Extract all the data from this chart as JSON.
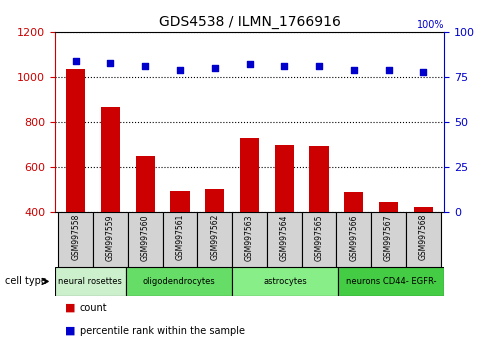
{
  "title": "GDS4538 / ILMN_1766916",
  "samples": [
    "GSM997558",
    "GSM997559",
    "GSM997560",
    "GSM997561",
    "GSM997562",
    "GSM997563",
    "GSM997564",
    "GSM997565",
    "GSM997566",
    "GSM997567",
    "GSM997568"
  ],
  "counts": [
    1035,
    865,
    650,
    495,
    505,
    730,
    700,
    695,
    490,
    445,
    425
  ],
  "percentile": [
    84,
    83,
    81,
    79,
    80,
    82,
    81,
    81,
    79,
    79,
    78
  ],
  "ylim_left": [
    400,
    1200
  ],
  "ylim_right": [
    0,
    100
  ],
  "yticks_left": [
    400,
    600,
    800,
    1000,
    1200
  ],
  "yticks_right": [
    0,
    25,
    50,
    75,
    100
  ],
  "cell_groups": [
    {
      "label": "neural rosettes",
      "start": 0,
      "end": 2,
      "color": "#ccf0cc"
    },
    {
      "label": "oligodendrocytes",
      "start": 2,
      "end": 5,
      "color": "#66dd66"
    },
    {
      "label": "astrocytes",
      "start": 5,
      "end": 8,
      "color": "#88ee88"
    },
    {
      "label": "neurons CD44- EGFR-",
      "start": 8,
      "end": 11,
      "color": "#44cc44"
    }
  ],
  "bar_color": "#cc0000",
  "dot_color": "#0000cc",
  "bar_width": 0.55,
  "grid_color": "black",
  "axis_color_left": "#cc0000",
  "axis_color_right": "#0000cc",
  "sample_box_color": "#d3d3d3",
  "fig_width": 4.99,
  "fig_height": 3.54,
  "dpi": 100
}
